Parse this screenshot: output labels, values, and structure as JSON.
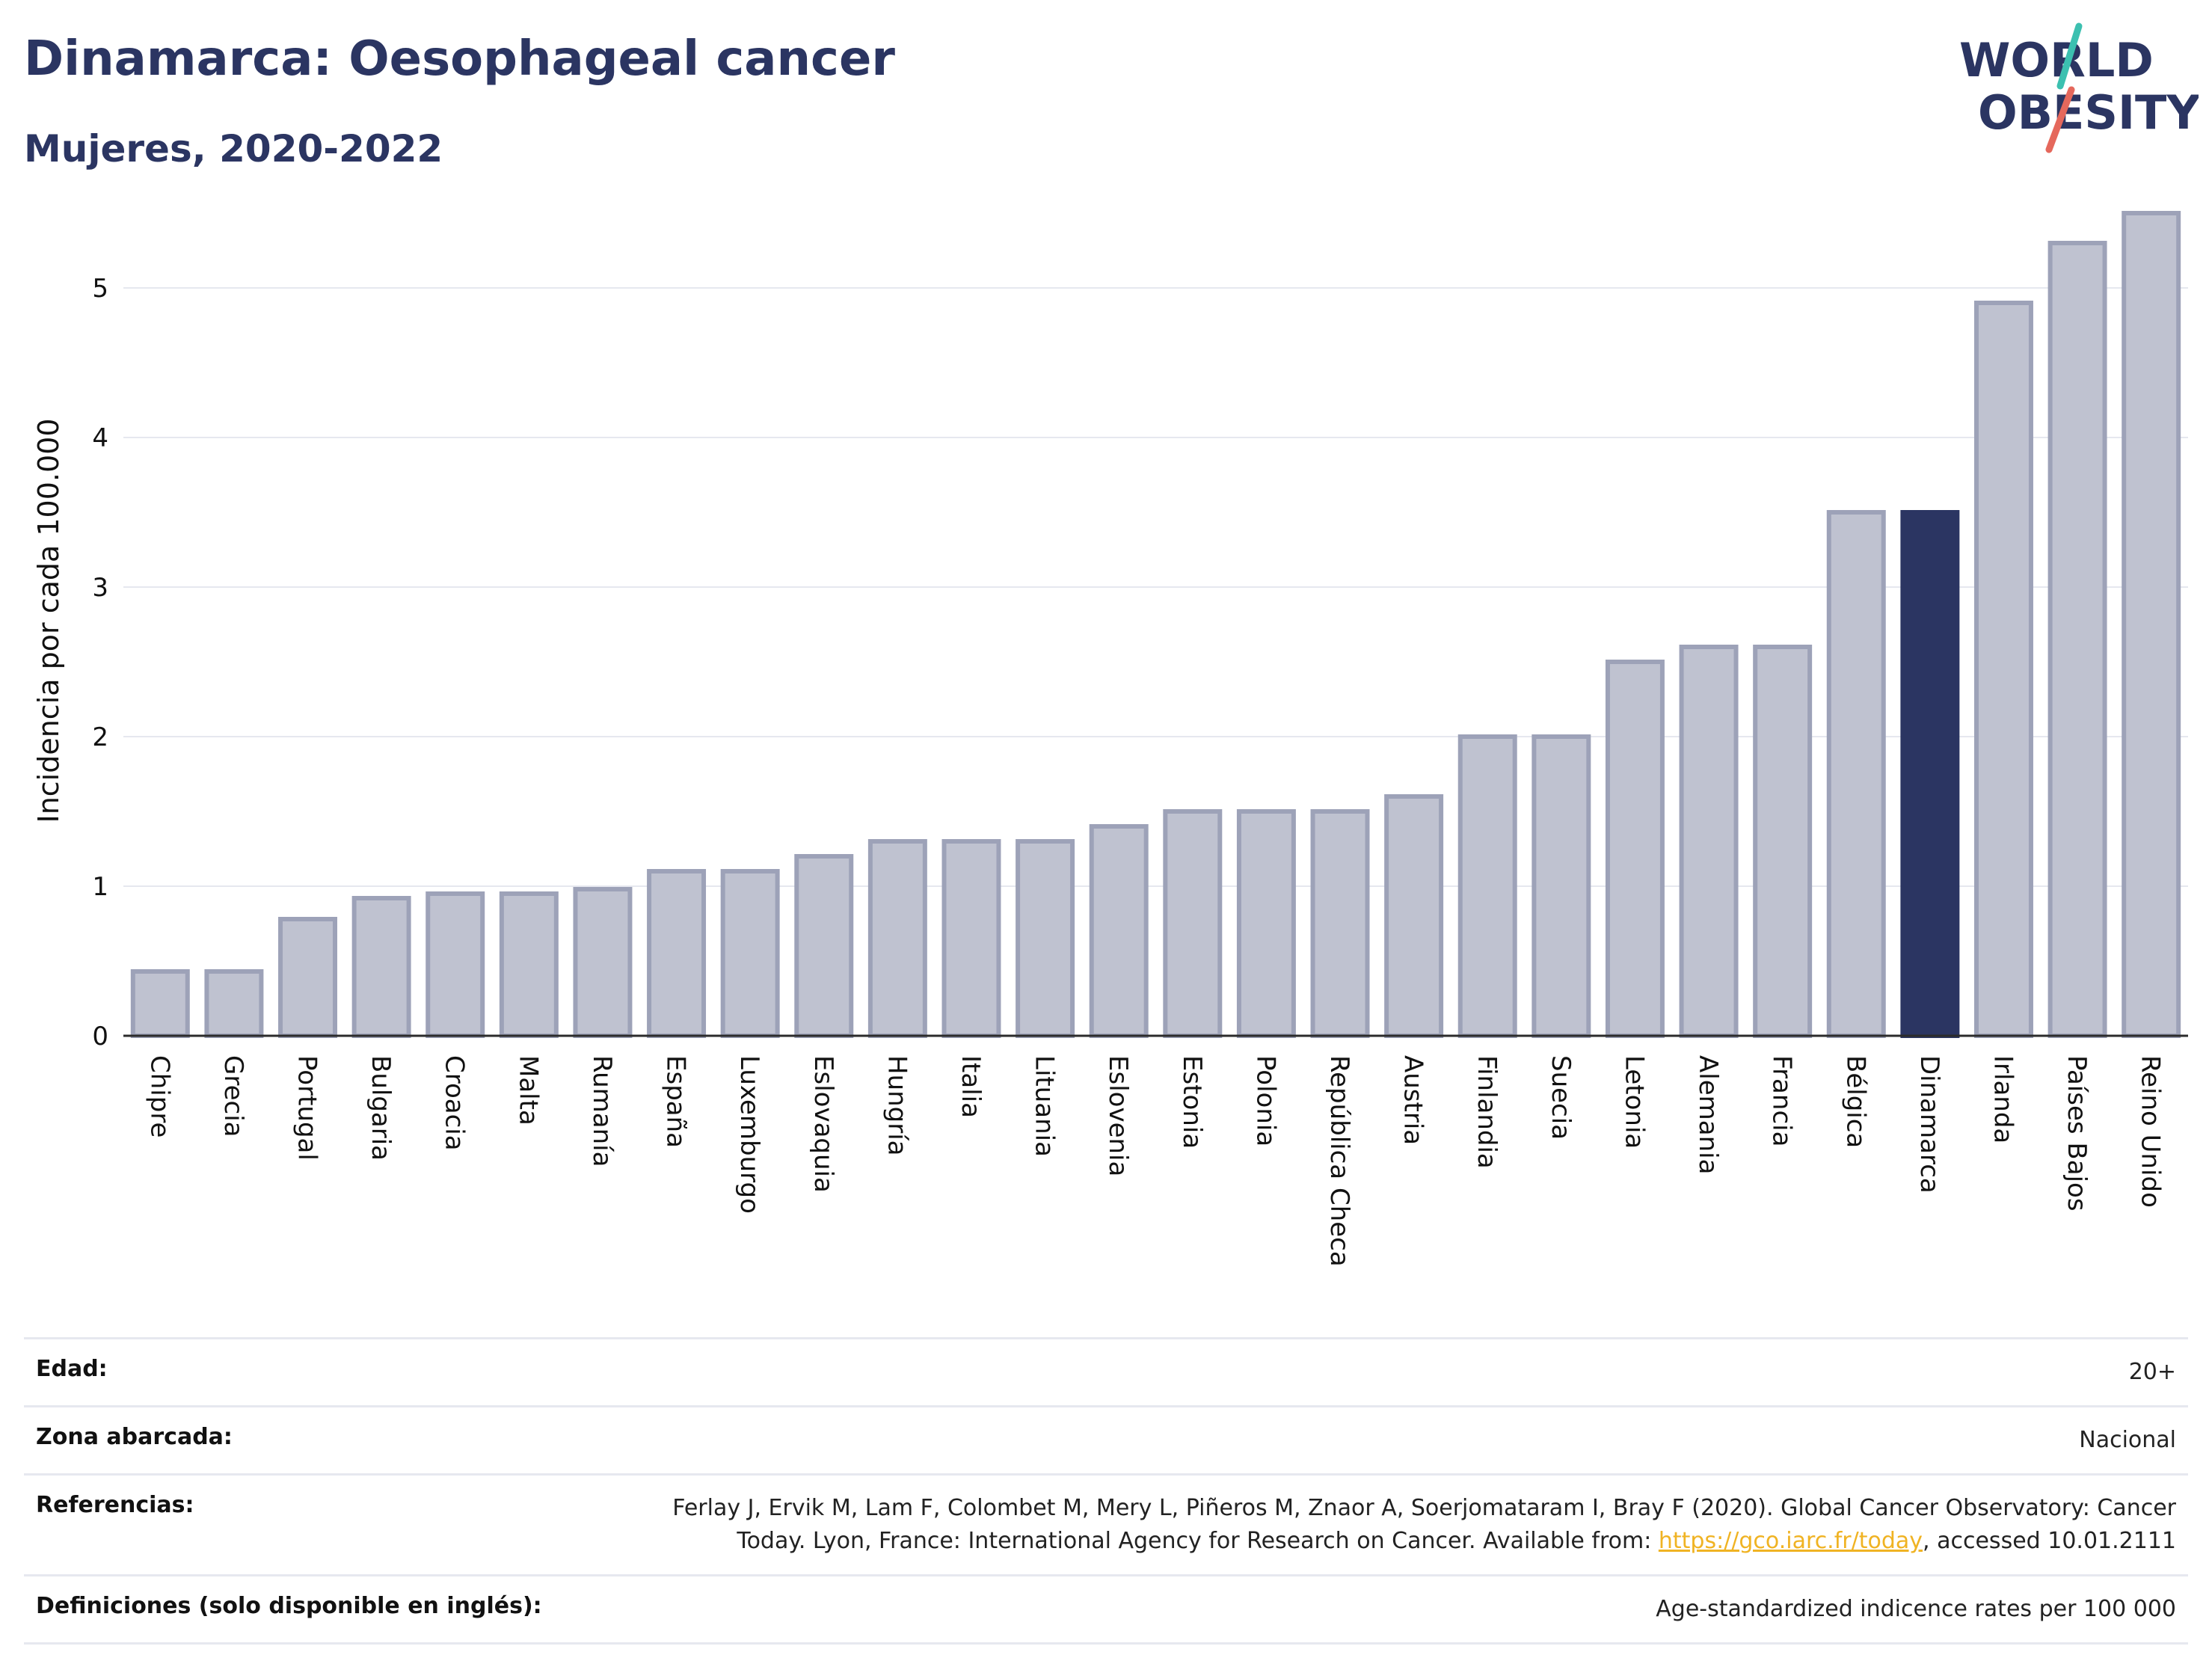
{
  "header": {
    "title": "Dinamarca: Oesophageal cancer",
    "subtitle": "Mujeres, 2020-2022"
  },
  "logo": {
    "line1": "WORLD",
    "line2": "OBESITY",
    "accent_colors": [
      "#3cc0b0",
      "#e5685c"
    ]
  },
  "colors": {
    "highlight": "#2b3562",
    "bar_fill": "#bfc2d0",
    "bar_stroke": "#9da2b8",
    "grid": "#e6e8ef"
  },
  "chart_data": {
    "type": "bar",
    "ylabel": "Incidencia por cada 100.000",
    "ylim": [
      0,
      5.6
    ],
    "yticks": [
      0,
      1,
      2,
      3,
      4,
      5
    ],
    "grid": true,
    "highlight_category": "Dinamarca",
    "categories": [
      "Chipre",
      "Grecia",
      "Portugal",
      "Bulgaria",
      "Croacia",
      "Malta",
      "Rumanía",
      "España",
      "Luxemburgo",
      "Eslovaquia",
      "Hungría",
      "Italia",
      "Lituania",
      "Eslovenia",
      "Estonia",
      "Polonia",
      "República Checa",
      "Austria",
      "Finlandia",
      "Suecia",
      "Letonia",
      "Alemania",
      "Francia",
      "Bélgica",
      "Dinamarca",
      "Irlanda",
      "Países Bajos",
      "Reino Unido"
    ],
    "values": [
      0.43,
      0.43,
      0.78,
      0.92,
      0.95,
      0.95,
      0.98,
      1.1,
      1.1,
      1.2,
      1.3,
      1.3,
      1.3,
      1.4,
      1.5,
      1.5,
      1.5,
      1.6,
      2.0,
      2.0,
      2.5,
      2.6,
      2.6,
      3.5,
      3.5,
      4.9,
      5.3,
      5.5
    ]
  },
  "info": [
    {
      "label": "Edad:",
      "value": "20+"
    },
    {
      "label": "Zona abarcada:",
      "value": "Nacional"
    },
    {
      "label": "Referencias:",
      "value_line1": "Ferlay J, Ervik M, Lam F, Colombet M, Mery L, Piñeros M, Znaor A, Soerjomataram I, Bray F (2020). Global Cancer Observatory: Cancer",
      "value_line2_pre": "Today. Lyon, France: International Agency for Research on Cancer. Available from: ",
      "link": "https://gco.iarc.fr/today",
      "value_line2_post": ", accessed 10.01.2111"
    },
    {
      "label": "Definiciones (solo disponible en inglés):",
      "value": "Age-standardized indicence rates per 100 000"
    }
  ]
}
